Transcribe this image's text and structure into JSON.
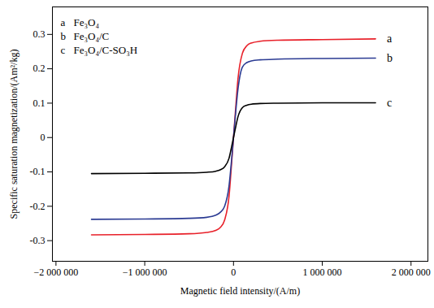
{
  "chart_data": {
    "type": "line",
    "x_label": "Magnetic field intensity/(A/m)",
    "y_label": "Specific saturation magnetization/(Am²/kg)",
    "x": [
      -1600000,
      -1000000,
      -500000,
      -300000,
      -200000,
      -150000,
      -100000,
      -50000,
      -20000,
      0,
      20000,
      50000,
      100000,
      150000,
      200000,
      300000,
      500000,
      1000000,
      1600000
    ],
    "series": [
      {
        "name": "Fe₃O₄",
        "label": "a",
        "color": "#e8212a",
        "values": [
          -0.283,
          -0.282,
          -0.28,
          -0.276,
          -0.27,
          -0.262,
          -0.24,
          -0.17,
          -0.07,
          0,
          0.07,
          0.17,
          0.245,
          0.267,
          0.275,
          0.28,
          0.283,
          0.285,
          0.287
        ]
      },
      {
        "name": "Fe₃O₄/C",
        "label": "b",
        "color": "#2b3b93",
        "values": [
          -0.238,
          -0.237,
          -0.235,
          -0.232,
          -0.226,
          -0.218,
          -0.2,
          -0.14,
          -0.06,
          0,
          0.06,
          0.14,
          0.205,
          0.218,
          0.223,
          0.226,
          0.228,
          0.23,
          0.231
        ]
      },
      {
        "name": "Fe₃O₄/C-SO₃H",
        "label": "c",
        "color": "#000000",
        "values": [
          -0.105,
          -0.104,
          -0.103,
          -0.101,
          -0.098,
          -0.094,
          -0.085,
          -0.06,
          -0.025,
          0,
          0.025,
          0.06,
          0.087,
          0.094,
          0.097,
          0.099,
          0.1,
          0.101,
          0.101
        ]
      }
    ],
    "xlim": [
      -2040000,
      2190000
    ],
    "xticks": [
      {
        "value": -2000000,
        "label": "−2 000 000"
      },
      {
        "value": -1000000,
        "label": "−1 000 000"
      },
      0,
      {
        "value": 1000000,
        "label": "1 000 000"
      },
      {
        "value": 2000000,
        "label": "2 000 000"
      }
    ],
    "ylim": [
      -0.36,
      0.38
    ],
    "yticks": [
      -0.3,
      -0.2,
      -0.1,
      0,
      0.1,
      0.2,
      0.3
    ],
    "legend": "upper left",
    "grid": false
  }
}
